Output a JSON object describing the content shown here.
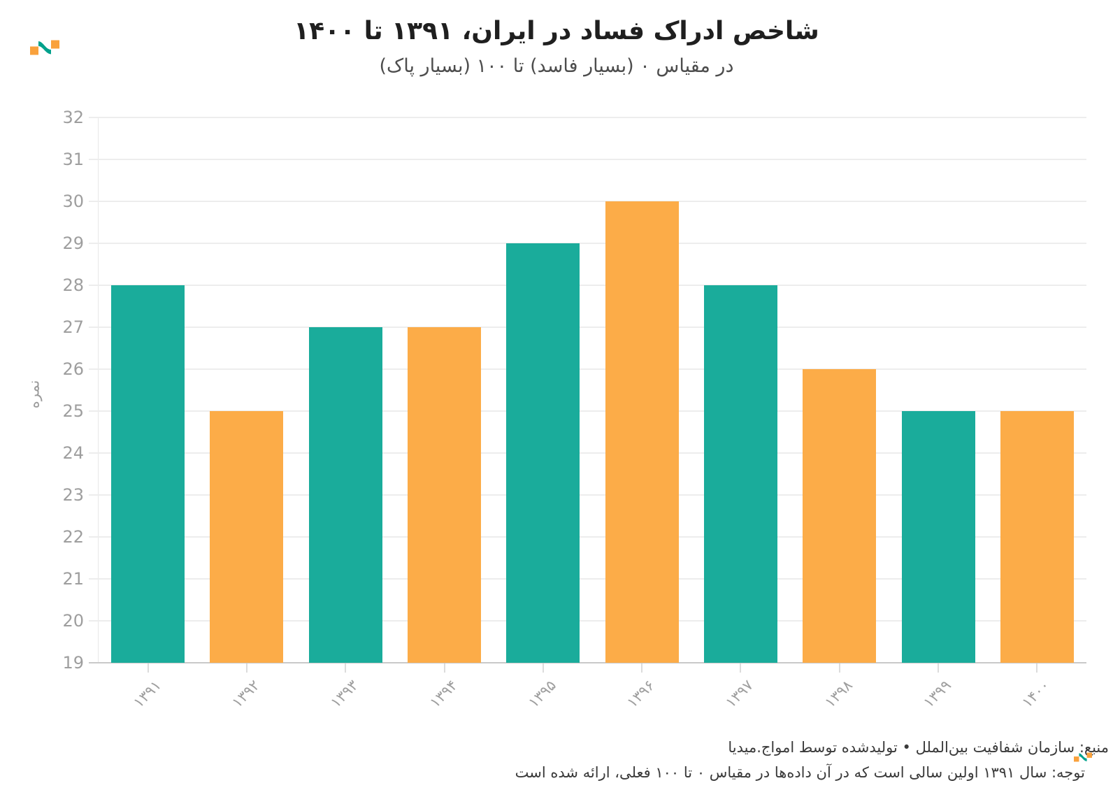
{
  "header": {
    "title": "شاخص ادراک فساد در ایران، ۱۳۹۱ تا ۱۴۰۰",
    "subtitle": "در مقیاس ۰ (بسیار فاسد) تا ۱۰۰ (بسیار پاک)"
  },
  "chart_data": {
    "type": "bar",
    "title": "شاخص ادراک فساد در ایران، ۱۳۹۱ تا ۱۴۰۰",
    "subtitle": "در مقیاس ۰ (بسیار فاسد) تا ۱۰۰ (بسیار پاک)",
    "categories": [
      "۱۳۹۱",
      "۱۳۹۲",
      "۱۳۹۳",
      "۱۳۹۴",
      "۱۳۹۵",
      "۱۳۹۶",
      "۱۳۹۷",
      "۱۳۹۸",
      "۱۳۹۹",
      "۱۴۰۰"
    ],
    "values": [
      28,
      25,
      27,
      27,
      29,
      30,
      28,
      26,
      25,
      25
    ],
    "bar_colors": [
      "#1aac9b",
      "#fcac48",
      "#1aac9b",
      "#fcac48",
      "#1aac9b",
      "#fcac48",
      "#1aac9b",
      "#fcac48",
      "#1aac9b",
      "#fcac48"
    ],
    "xlabel": "",
    "ylabel": "نمره",
    "ylim": [
      19,
      32
    ],
    "ytick_step": 1,
    "yticks": [
      19,
      20,
      21,
      22,
      23,
      24,
      25,
      26,
      27,
      28,
      29,
      30,
      31,
      32
    ],
    "grid": "horizontal",
    "legend": "none"
  },
  "colors": {
    "teal": "#1aac9b",
    "orange": "#fcac48",
    "logo_teal": "#00a18c",
    "logo_orange": "#f9a13c",
    "gridline": "#ededed",
    "axis_label": "#9e9e9e",
    "title_text": "#1f1f1f"
  },
  "icons": {
    "logo_top": "amwaj-media-logo",
    "logo_bottom": "amwaj-media-logo"
  },
  "footer": {
    "source_line": "منبع: سازمان شفافیت بین‌الملل • تولیدشده توسط امواج.میدیا",
    "note_line": "توجه: سال ۱۳۹۱ اولین سالی است که در آن داده‌ها در مقیاس ۰ تا ۱۰۰ فعلی، ارائه شده است"
  }
}
